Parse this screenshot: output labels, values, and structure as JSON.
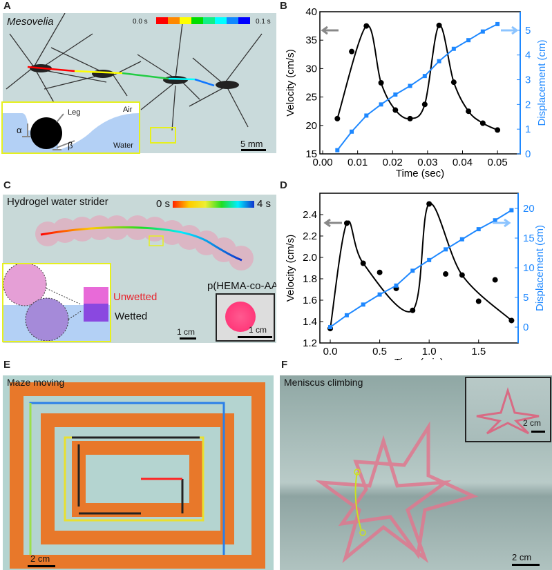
{
  "panels": {
    "A": {
      "label": "A",
      "title": "Mesovelia",
      "colorbar_start": "0.0 s",
      "colorbar_end": "0.1 s",
      "inset": {
        "leg": "Leg",
        "air": "Air",
        "water": "Water",
        "alpha": "α",
        "beta": "β"
      },
      "scalebar": "5 mm"
    },
    "B": {
      "label": "B"
    },
    "C": {
      "label": "C",
      "title": "Hydrogel water strider",
      "colorbar_start": "0 s",
      "colorbar_end": "4 s",
      "unwetted": "Unwetted",
      "wetted": "Wetted",
      "material": "p(HEMA-co-AA)",
      "scalebar": "1 cm",
      "inset_scalebar": "1 cm"
    },
    "D": {
      "label": "D"
    },
    "E": {
      "label": "E",
      "title": "Maze moving",
      "scalebar": "2 cm"
    },
    "F": {
      "label": "F",
      "title": "Meniscus climbing",
      "scalebar": "2 cm",
      "inset_scalebar": "2 cm"
    }
  },
  "colors": {
    "velocity": "#000000",
    "displacement": "#1e88ff",
    "unwetted": "#e8202a",
    "inset_border": "#e6f01e"
  },
  "chart_data": [
    {
      "type": "line",
      "panel": "B",
      "xlabel": "Time (sec)",
      "ylabel": "Velocity (cm/s)",
      "y2label": "Displacement (cm)",
      "xlim": [
        -0.0008,
        0.0565
      ],
      "ylim": [
        15,
        40
      ],
      "y2lim": [
        0,
        5.75
      ],
      "xticks": [
        "0.00",
        "0.01",
        "0.02",
        "0.03",
        "0.04",
        "0.05"
      ],
      "yticks": [
        "15",
        "20",
        "25",
        "30",
        "35",
        "40"
      ],
      "y2ticks": [
        "0",
        "1",
        "2",
        "3",
        "4",
        "5"
      ],
      "x": [
        0.0042,
        0.0083,
        0.0125,
        0.0167,
        0.0208,
        0.025,
        0.0292,
        0.0333,
        0.0375,
        0.0417,
        0.0458,
        0.05
      ],
      "series": [
        {
          "axis": "left",
          "values": [
            21.2,
            33.0,
            37.5,
            27.5,
            22.7,
            21.2,
            23.7,
            37.6,
            27.6,
            22.5,
            20.4,
            19.2
          ]
        },
        {
          "axis": "right",
          "values": [
            0.15,
            0.9,
            1.55,
            2.0,
            2.4,
            2.75,
            3.15,
            3.75,
            4.25,
            4.6,
            4.95,
            5.25
          ]
        }
      ]
    },
    {
      "type": "line",
      "panel": "D",
      "xlabel": "Time (min)",
      "ylabel": "Velocity (cm/s)",
      "y2label": "Displacement (cm)",
      "xlim": [
        -0.105,
        1.9
      ],
      "ylim": [
        1.2,
        2.6
      ],
      "y2lim": [
        -2.67,
        22.56
      ],
      "xticks": [
        "0.0",
        "0.5",
        "1.0",
        "1.5"
      ],
      "yticks": [
        "1.2",
        "1.4",
        "1.6",
        "1.8",
        "2.0",
        "2.2",
        "2.4"
      ],
      "y2ticks": [
        "0",
        "5",
        "10",
        "15",
        "20"
      ],
      "x": [
        0,
        0.167,
        0.333,
        0.5,
        0.667,
        0.833,
        1.0,
        1.167,
        1.333,
        1.5,
        1.667,
        1.833
      ],
      "series": [
        {
          "axis": "left",
          "values": [
            1.335,
            2.32,
            1.945,
            1.86,
            1.71,
            1.505,
            2.5,
            1.845,
            1.835,
            1.59,
            1.79,
            1.41
          ]
        },
        {
          "axis": "right",
          "values": [
            0,
            2.0,
            3.8,
            5.5,
            7.0,
            9.5,
            11.3,
            13.1,
            14.8,
            16.5,
            18.0,
            19.7
          ]
        }
      ]
    }
  ]
}
